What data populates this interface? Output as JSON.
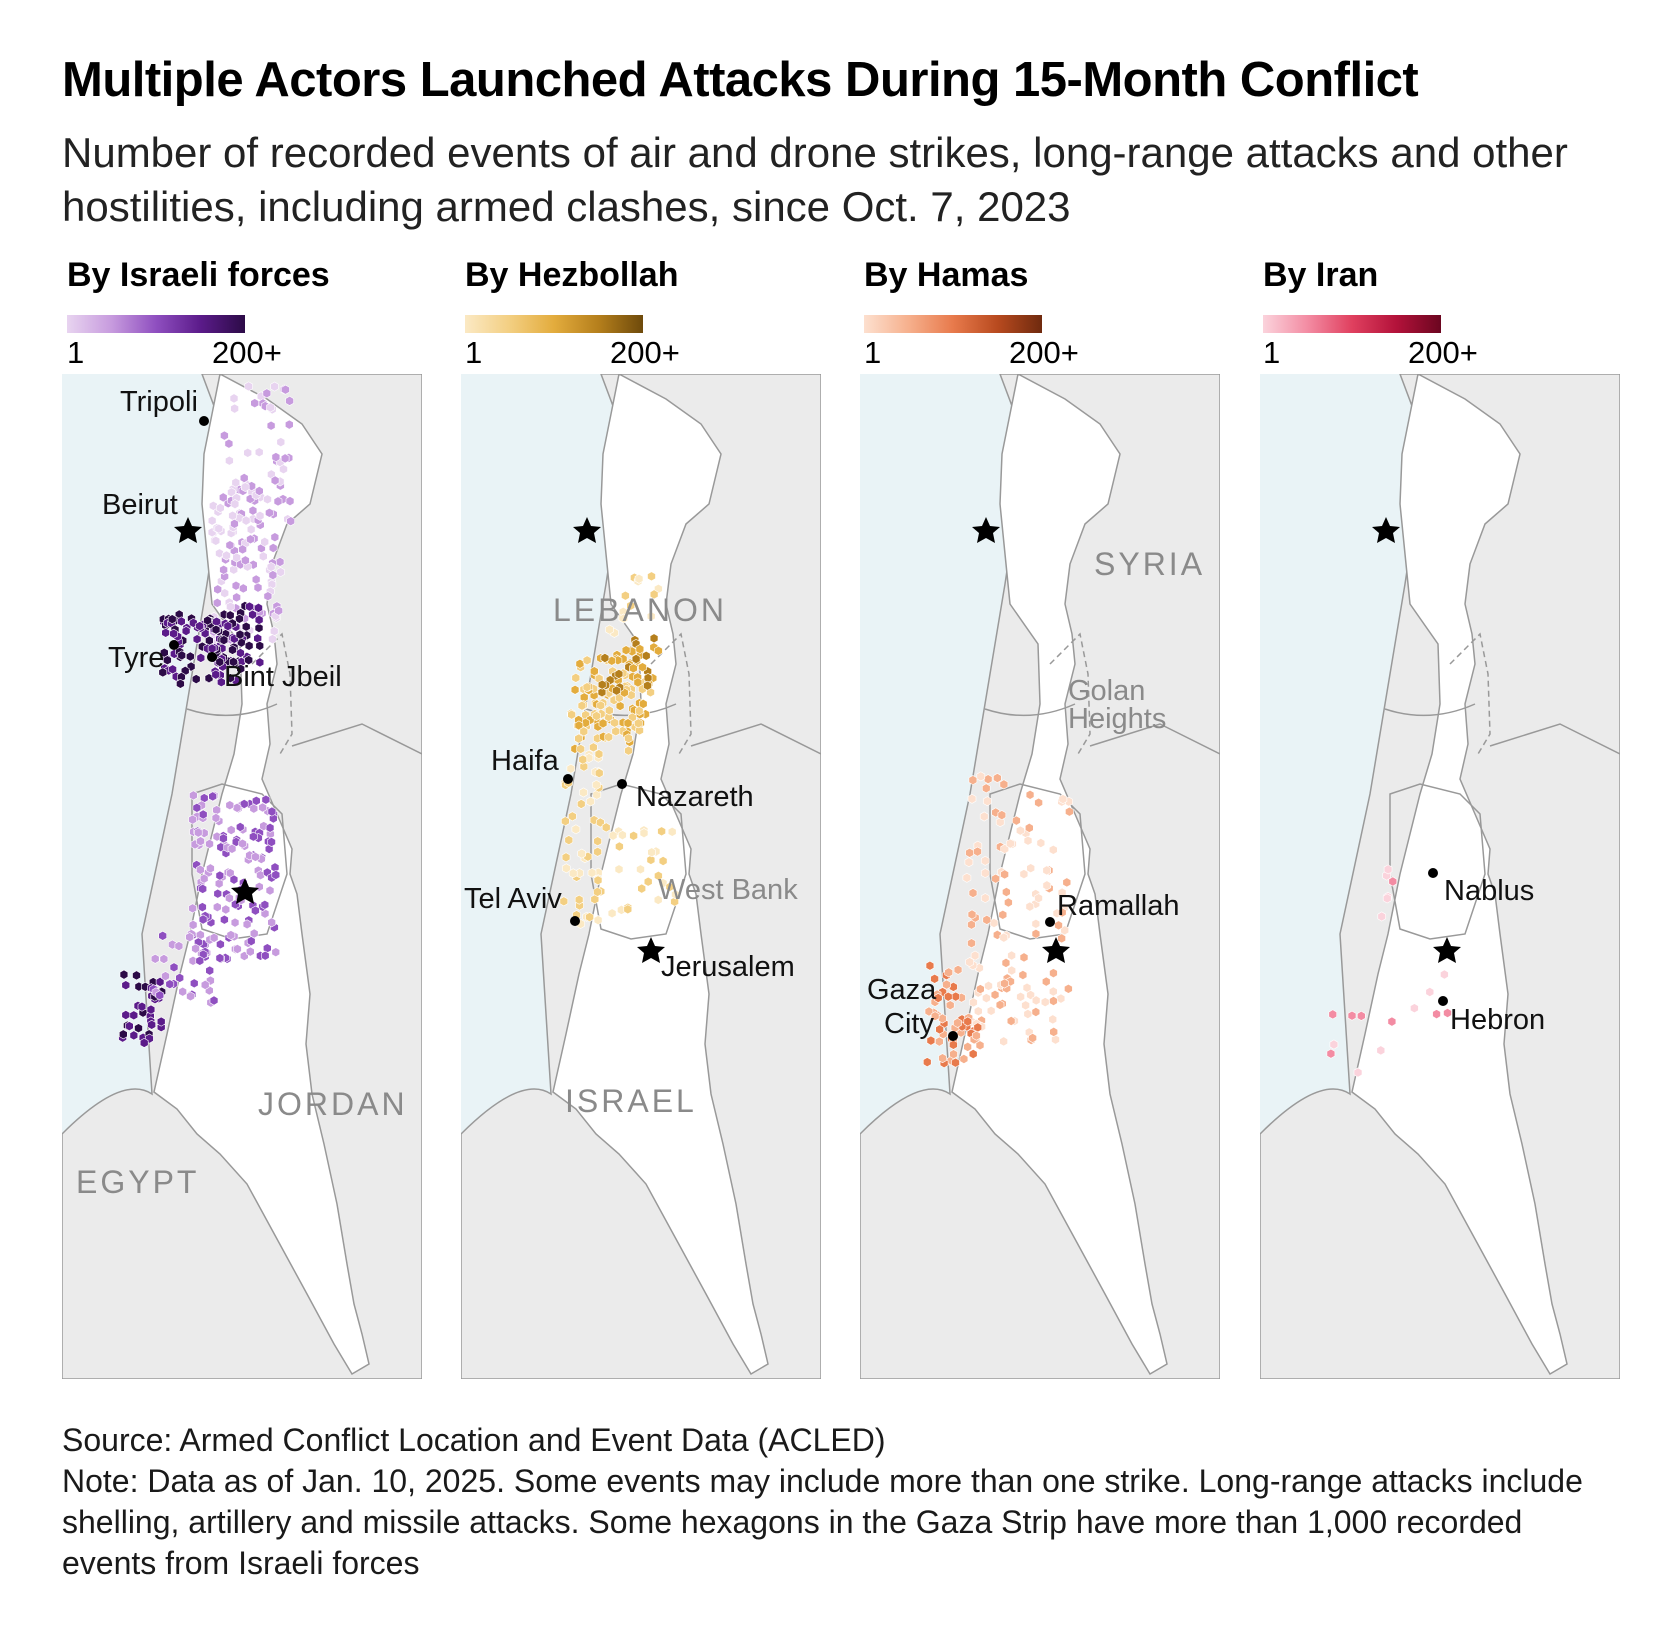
{
  "title": "Multiple Actors Launched Attacks During 15-Month Conflict",
  "subtitle": "Number of recorded events of air and drone strikes, long-range attacks and other hostilities, including armed clashes, since Oct. 7, 2023",
  "legend": {
    "min": "1",
    "max": "200+"
  },
  "colors": {
    "sea": "#e9f3f6",
    "land_other": "#ebebeb",
    "land_focus": "#ffffff",
    "border": "#999999"
  },
  "panels": [
    {
      "title": "By Israeli forces",
      "ramp": [
        "#e8d4f0",
        "#c79bde",
        "#8f4fc0",
        "#5b1b8a",
        "#2c0b47"
      ],
      "city_labels": {
        "tripoli": "Tripoli",
        "beirut": "Beirut",
        "tyre": "Tyre",
        "bint_jbeil": "Bint Jbeil"
      },
      "country_labels": {
        "jordan": "JORDAN",
        "egypt": "EGYPT"
      }
    },
    {
      "title": "By Hezbollah",
      "ramp": [
        "#fbe9c4",
        "#f3cf82",
        "#e3ac3d",
        "#b57f1c",
        "#6e4a0b"
      ],
      "city_labels": {
        "haifa": "Haifa",
        "nazareth": "Nazareth",
        "tel_aviv": "Tel Aviv",
        "jerusalem": "Jerusalem"
      },
      "country_labels": {
        "lebanon": "LEBANON",
        "israel": "ISRAEL"
      },
      "region_labels": {
        "west_bank": "West Bank"
      }
    },
    {
      "title": "By Hamas",
      "ramp": [
        "#fde0cf",
        "#f6b08d",
        "#e87a4c",
        "#b84a1f",
        "#6f2a0e"
      ],
      "city_labels": {
        "ramallah": "Ramallah",
        "gaza_line1": "Gaza",
        "gaza_line2": "City"
      },
      "country_labels": {
        "syria": "SYRIA"
      },
      "region_labels": {
        "golan_line1": "Golan",
        "golan_line2": "Heights"
      }
    },
    {
      "title": "By Iran",
      "ramp": [
        "#fbd3dc",
        "#f38ca3",
        "#e0405f",
        "#b3123a",
        "#6b0620"
      ],
      "city_labels": {
        "nablus": "Nablus",
        "hebron": "Hebron"
      }
    }
  ],
  "footer": {
    "source": "Source: Armed Conflict Location and Event Data (ACLED)",
    "note": "Note: Data as of Jan. 10, 2025. Some events may include more than one strike. Long-range attacks include shelling, artillery and missile attacks. Some hexagons in the Gaza Strip have more than 1,000 recorded events from Israeli forces"
  }
}
